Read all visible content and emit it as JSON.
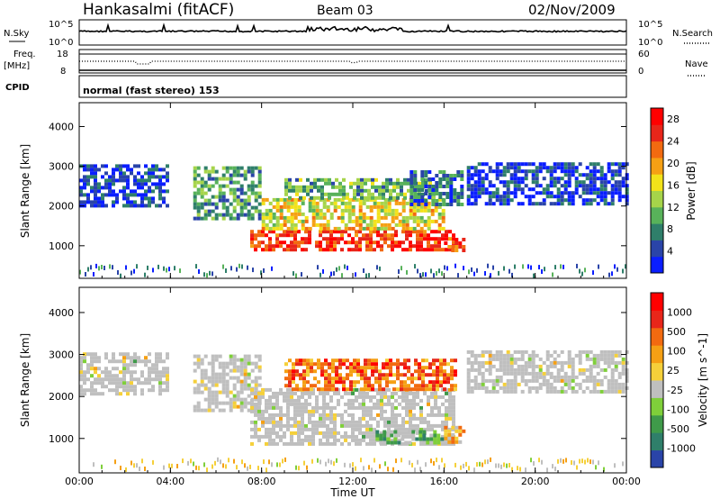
{
  "header": {
    "station": "Hankasalmi (fitACF)",
    "beam": "Beam 03",
    "date": "02/Nov/2009"
  },
  "panels": {
    "nsky": {
      "left_label": "N.Sky",
      "right_label": "N.Search",
      "left_ticks": [
        "10^5",
        "10^0"
      ],
      "right_ticks": [
        "10^5",
        "10^0"
      ]
    },
    "freq": {
      "left_label_1": "Freq.",
      "left_label_2": "[MHz]",
      "right_label": "Nave",
      "left_ticks": [
        "18",
        "8"
      ],
      "right_ticks": [
        "60",
        "0"
      ]
    },
    "cpid": {
      "label": "CPID",
      "text": "normal (fast stereo) 153"
    }
  },
  "colors": {
    "power_scale": [
      "#0a1eff",
      "#2a44a8",
      "#2f7f6a",
      "#58b25a",
      "#a6d44a",
      "#f2e21a",
      "#f5a014",
      "#f26a10",
      "#e8261a",
      "#ff0000"
    ],
    "velocity_scale": [
      "#2a44a8",
      "#2f7f6a",
      "#3f9a4a",
      "#7fcf3a",
      "#bfbfbf",
      "#f5d03a",
      "#f5a014",
      "#f26a10",
      "#e8261a",
      "#ff0000"
    ],
    "gray": "#bdbdb8"
  },
  "chart_data": [
    {
      "type": "heatmap",
      "name": "power",
      "ylabel": "Slant Range [km]",
      "xlabel": "Time UT",
      "x_ticks": [
        "00:00",
        "04:00",
        "08:00",
        "12:00",
        "16:00",
        "20:00",
        "00:00"
      ],
      "y_ticks": [
        1000,
        2000,
        3000,
        4000
      ],
      "xlim": [
        0,
        24
      ],
      "ylim": [
        180,
        4600
      ],
      "colorbar": {
        "label": "Power [dB]",
        "ticks": [
          4,
          8,
          12,
          16,
          20,
          24,
          28
        ],
        "range": [
          0,
          30
        ]
      },
      "regions": [
        {
          "t0": 0.0,
          "t1": 3.9,
          "r0": 2050,
          "r1": 3050,
          "level": 0.12
        },
        {
          "t0": 5.0,
          "t1": 8.0,
          "r0": 1700,
          "r1": 3000,
          "level": 0.3
        },
        {
          "t0": 7.5,
          "t1": 16.5,
          "r0": 900,
          "r1": 1400,
          "level": 0.85
        },
        {
          "t0": 8.0,
          "t1": 16.0,
          "r0": 1400,
          "r1": 2200,
          "level": 0.55
        },
        {
          "t0": 9.0,
          "t1": 15.5,
          "r0": 2200,
          "r1": 2700,
          "level": 0.35
        },
        {
          "t0": 14.5,
          "t1": 16.8,
          "r0": 2000,
          "r1": 2900,
          "level": 0.22
        },
        {
          "t0": 16.0,
          "t1": 16.9,
          "r0": 900,
          "r1": 1200,
          "level": 0.8
        },
        {
          "t0": 17.0,
          "t1": 24.0,
          "r0": 2100,
          "r1": 3100,
          "level": 0.12
        }
      ]
    },
    {
      "type": "heatmap",
      "name": "velocity",
      "ylabel": "Slant Range [km]",
      "xlabel": "Time UT",
      "x_ticks": [
        "00:00",
        "04:00",
        "08:00",
        "12:00",
        "16:00",
        "20:00",
        "00:00"
      ],
      "y_ticks": [
        1000,
        2000,
        3000,
        4000
      ],
      "xlim": [
        0,
        24
      ],
      "ylim": [
        180,
        4600
      ],
      "colorbar": {
        "label": "Velocity [m s^-1]",
        "ticks": [
          1000,
          500,
          100,
          25,
          -25,
          -100,
          -500,
          -1000
        ]
      },
      "regions": [
        {
          "t0": 0.0,
          "t1": 3.9,
          "r0": 2050,
          "r1": 3050,
          "level": 0.45
        },
        {
          "t0": 5.0,
          "t1": 8.0,
          "r0": 1700,
          "r1": 3000,
          "level": 0.45
        },
        {
          "t0": 7.5,
          "t1": 16.5,
          "r0": 900,
          "r1": 2200,
          "level": 0.45
        },
        {
          "t0": 9.0,
          "t1": 16.5,
          "r0": 2200,
          "r1": 2900,
          "level": 0.75
        },
        {
          "t0": 16.0,
          "t1": 16.9,
          "r0": 900,
          "r1": 1300,
          "level": 0.62
        },
        {
          "t0": 13.0,
          "t1": 16.0,
          "r0": 900,
          "r1": 1200,
          "level": 0.3
        },
        {
          "t0": 17.0,
          "t1": 24.0,
          "r0": 2100,
          "r1": 3100,
          "level": 0.45
        }
      ]
    }
  ]
}
